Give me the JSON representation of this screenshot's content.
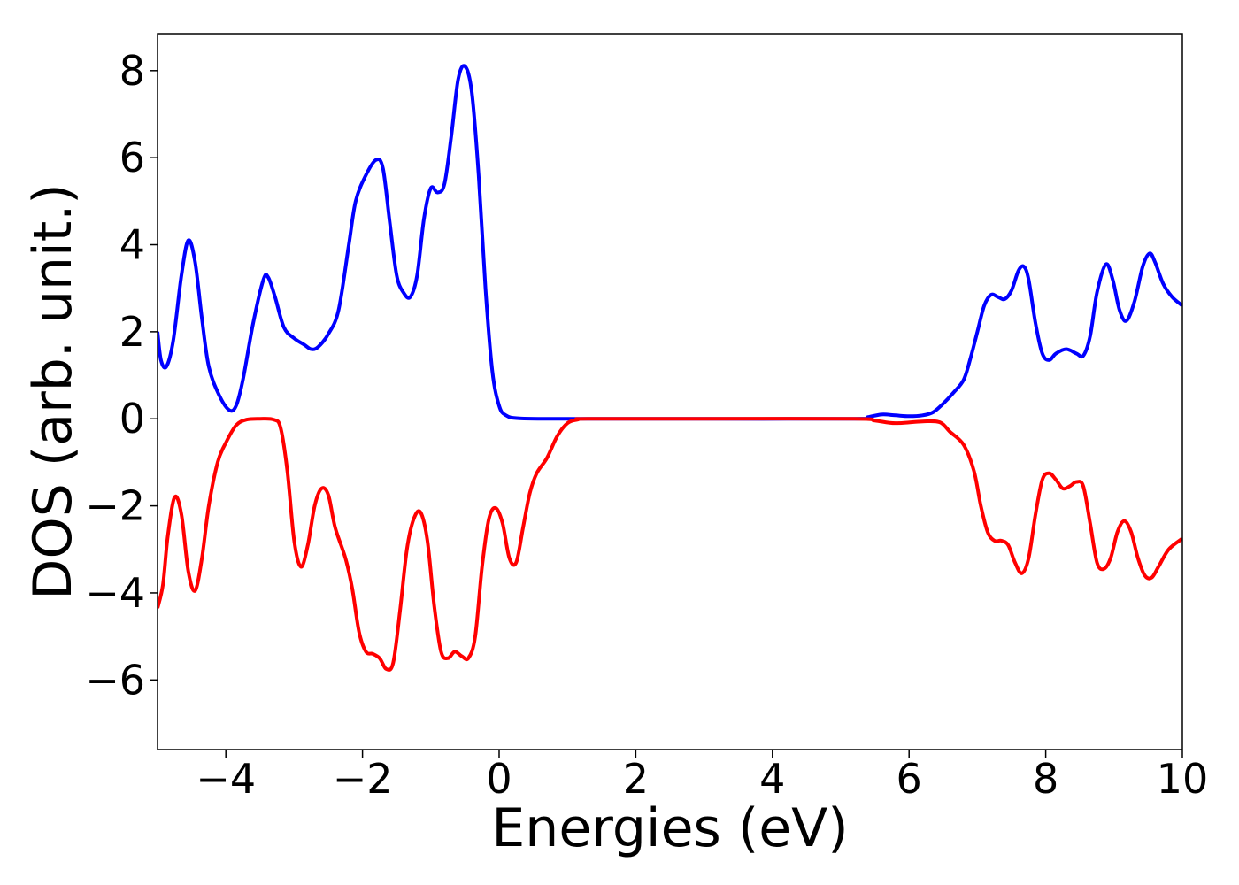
{
  "chart_data": {
    "type": "line",
    "title": "",
    "xlabel": "Energies (eV)",
    "ylabel": "DOS (arb. unit.)",
    "xlim": [
      -5,
      10
    ],
    "ylim": [
      -7.6,
      8.85
    ],
    "xticks": [
      -4,
      -2,
      0,
      2,
      4,
      6,
      8,
      10
    ],
    "yticks": [
      -6,
      -4,
      -2,
      0,
      2,
      4,
      6,
      8
    ],
    "xtick_labels": [
      "−4",
      "−2",
      "0",
      "2",
      "4",
      "6",
      "8",
      "10"
    ],
    "ytick_labels": [
      "−6",
      "−4",
      "−2",
      "0",
      "2",
      "4",
      "6",
      "8"
    ],
    "grid": false,
    "legend": false,
    "series": [
      {
        "color": "#0000ff",
        "points": [
          [
            -5.0,
            2.0
          ],
          [
            -4.95,
            1.35
          ],
          [
            -4.87,
            1.2
          ],
          [
            -4.77,
            1.8
          ],
          [
            -4.65,
            3.3
          ],
          [
            -4.55,
            4.1
          ],
          [
            -4.45,
            3.6
          ],
          [
            -4.35,
            2.3
          ],
          [
            -4.25,
            1.2
          ],
          [
            -4.1,
            0.55
          ],
          [
            -3.95,
            0.2
          ],
          [
            -3.85,
            0.3
          ],
          [
            -3.75,
            0.9
          ],
          [
            -3.6,
            2.2
          ],
          [
            -3.45,
            3.2
          ],
          [
            -3.38,
            3.25
          ],
          [
            -3.28,
            2.8
          ],
          [
            -3.15,
            2.1
          ],
          [
            -3.0,
            1.85
          ],
          [
            -2.85,
            1.7
          ],
          [
            -2.75,
            1.6
          ],
          [
            -2.65,
            1.65
          ],
          [
            -2.5,
            1.95
          ],
          [
            -2.35,
            2.5
          ],
          [
            -2.2,
            4.0
          ],
          [
            -2.1,
            5.0
          ],
          [
            -1.95,
            5.6
          ],
          [
            -1.8,
            5.95
          ],
          [
            -1.7,
            5.75
          ],
          [
            -1.6,
            4.5
          ],
          [
            -1.5,
            3.3
          ],
          [
            -1.4,
            2.9
          ],
          [
            -1.3,
            2.8
          ],
          [
            -1.2,
            3.3
          ],
          [
            -1.1,
            4.6
          ],
          [
            -1.0,
            5.3
          ],
          [
            -0.9,
            5.2
          ],
          [
            -0.8,
            5.4
          ],
          [
            -0.7,
            6.5
          ],
          [
            -0.6,
            7.8
          ],
          [
            -0.5,
            8.1
          ],
          [
            -0.4,
            7.5
          ],
          [
            -0.3,
            5.6
          ],
          [
            -0.2,
            3.0
          ],
          [
            -0.1,
            1.1
          ],
          [
            0.0,
            0.3
          ],
          [
            0.1,
            0.08
          ],
          [
            0.3,
            0.01
          ],
          [
            1.0,
            0.0
          ],
          [
            3.0,
            0.0
          ],
          [
            5.2,
            0.0
          ],
          [
            5.4,
            0.04
          ],
          [
            5.6,
            0.1
          ],
          [
            5.8,
            0.08
          ],
          [
            6.0,
            0.06
          ],
          [
            6.2,
            0.08
          ],
          [
            6.35,
            0.15
          ],
          [
            6.5,
            0.35
          ],
          [
            6.65,
            0.6
          ],
          [
            6.8,
            0.9
          ],
          [
            6.9,
            1.4
          ],
          [
            7.0,
            2.0
          ],
          [
            7.1,
            2.6
          ],
          [
            7.2,
            2.85
          ],
          [
            7.3,
            2.8
          ],
          [
            7.4,
            2.75
          ],
          [
            7.5,
            2.95
          ],
          [
            7.6,
            3.4
          ],
          [
            7.68,
            3.5
          ],
          [
            7.75,
            3.2
          ],
          [
            7.85,
            2.2
          ],
          [
            7.95,
            1.5
          ],
          [
            8.05,
            1.35
          ],
          [
            8.15,
            1.5
          ],
          [
            8.3,
            1.6
          ],
          [
            8.45,
            1.5
          ],
          [
            8.55,
            1.45
          ],
          [
            8.65,
            1.9
          ],
          [
            8.75,
            2.9
          ],
          [
            8.88,
            3.55
          ],
          [
            8.98,
            3.2
          ],
          [
            9.08,
            2.5
          ],
          [
            9.18,
            2.25
          ],
          [
            9.3,
            2.7
          ],
          [
            9.42,
            3.5
          ],
          [
            9.52,
            3.8
          ],
          [
            9.6,
            3.6
          ],
          [
            9.72,
            3.1
          ],
          [
            9.85,
            2.8
          ],
          [
            10.0,
            2.6
          ]
        ]
      },
      {
        "color": "#ff0000",
        "points": [
          [
            -5.0,
            -4.35
          ],
          [
            -4.92,
            -3.8
          ],
          [
            -4.85,
            -2.7
          ],
          [
            -4.75,
            -1.8
          ],
          [
            -4.65,
            -2.2
          ],
          [
            -4.55,
            -3.5
          ],
          [
            -4.45,
            -3.95
          ],
          [
            -4.35,
            -3.2
          ],
          [
            -4.25,
            -2.0
          ],
          [
            -4.12,
            -1.0
          ],
          [
            -4.0,
            -0.55
          ],
          [
            -3.85,
            -0.15
          ],
          [
            -3.7,
            -0.02
          ],
          [
            -3.5,
            0.0
          ],
          [
            -3.3,
            -0.02
          ],
          [
            -3.2,
            -0.2
          ],
          [
            -3.1,
            -1.2
          ],
          [
            -3.0,
            -2.8
          ],
          [
            -2.9,
            -3.4
          ],
          [
            -2.8,
            -2.9
          ],
          [
            -2.7,
            -2.0
          ],
          [
            -2.6,
            -1.6
          ],
          [
            -2.5,
            -1.75
          ],
          [
            -2.4,
            -2.5
          ],
          [
            -2.25,
            -3.2
          ],
          [
            -2.15,
            -3.9
          ],
          [
            -2.05,
            -4.9
          ],
          [
            -1.95,
            -5.35
          ],
          [
            -1.85,
            -5.4
          ],
          [
            -1.75,
            -5.5
          ],
          [
            -1.65,
            -5.75
          ],
          [
            -1.55,
            -5.6
          ],
          [
            -1.45,
            -4.4
          ],
          [
            -1.35,
            -3.0
          ],
          [
            -1.25,
            -2.3
          ],
          [
            -1.15,
            -2.15
          ],
          [
            -1.05,
            -2.8
          ],
          [
            -0.95,
            -4.3
          ],
          [
            -0.85,
            -5.35
          ],
          [
            -0.75,
            -5.5
          ],
          [
            -0.65,
            -5.35
          ],
          [
            -0.55,
            -5.45
          ],
          [
            -0.45,
            -5.5
          ],
          [
            -0.35,
            -5.0
          ],
          [
            -0.25,
            -3.4
          ],
          [
            -0.15,
            -2.3
          ],
          [
            -0.05,
            -2.05
          ],
          [
            0.05,
            -2.4
          ],
          [
            0.15,
            -3.2
          ],
          [
            0.25,
            -3.3
          ],
          [
            0.35,
            -2.5
          ],
          [
            0.45,
            -1.7
          ],
          [
            0.55,
            -1.25
          ],
          [
            0.7,
            -0.9
          ],
          [
            0.85,
            -0.4
          ],
          [
            1.0,
            -0.1
          ],
          [
            1.15,
            -0.02
          ],
          [
            1.3,
            0.0
          ],
          [
            3.0,
            0.0
          ],
          [
            5.2,
            0.0
          ],
          [
            5.5,
            -0.04
          ],
          [
            5.8,
            -0.1
          ],
          [
            6.2,
            -0.06
          ],
          [
            6.45,
            -0.08
          ],
          [
            6.6,
            -0.3
          ],
          [
            6.8,
            -0.6
          ],
          [
            6.95,
            -1.2
          ],
          [
            7.05,
            -2.0
          ],
          [
            7.15,
            -2.6
          ],
          [
            7.25,
            -2.8
          ],
          [
            7.35,
            -2.8
          ],
          [
            7.45,
            -2.9
          ],
          [
            7.55,
            -3.3
          ],
          [
            7.65,
            -3.55
          ],
          [
            7.75,
            -3.2
          ],
          [
            7.85,
            -2.2
          ],
          [
            7.95,
            -1.4
          ],
          [
            8.05,
            -1.25
          ],
          [
            8.15,
            -1.4
          ],
          [
            8.25,
            -1.6
          ],
          [
            8.35,
            -1.55
          ],
          [
            8.45,
            -1.45
          ],
          [
            8.55,
            -1.55
          ],
          [
            8.65,
            -2.4
          ],
          [
            8.75,
            -3.3
          ],
          [
            8.85,
            -3.45
          ],
          [
            8.95,
            -3.2
          ],
          [
            9.05,
            -2.6
          ],
          [
            9.15,
            -2.35
          ],
          [
            9.25,
            -2.6
          ],
          [
            9.35,
            -3.2
          ],
          [
            9.45,
            -3.6
          ],
          [
            9.55,
            -3.65
          ],
          [
            9.65,
            -3.4
          ],
          [
            9.8,
            -3.0
          ],
          [
            10.0,
            -2.75
          ]
        ]
      }
    ]
  }
}
